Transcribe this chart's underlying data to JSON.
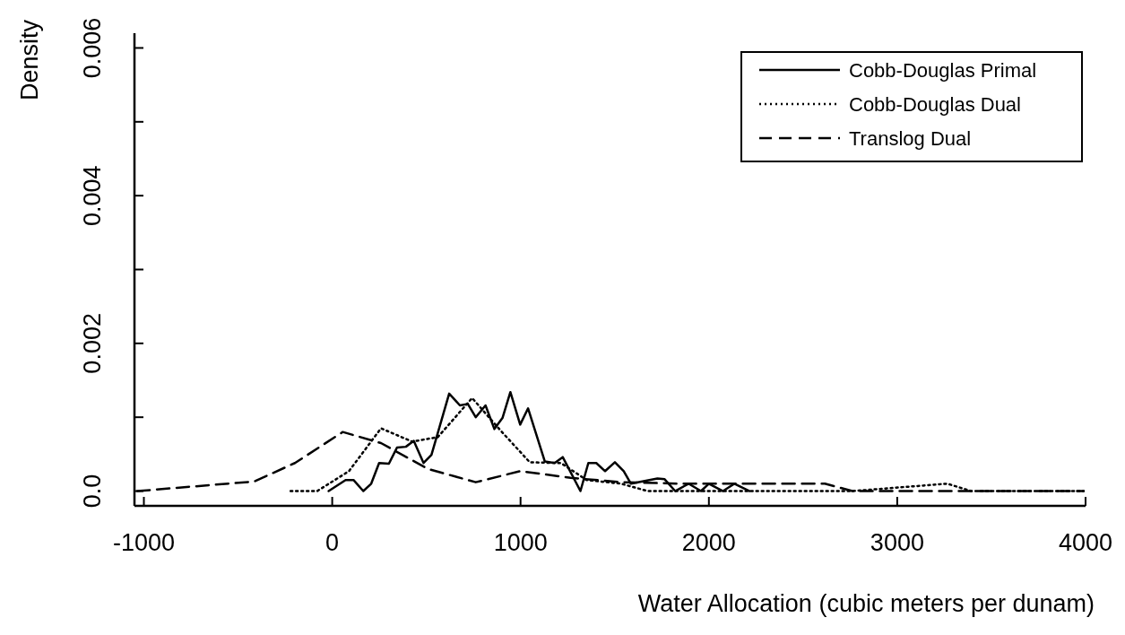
{
  "chart_data": {
    "type": "line",
    "xlabel": "Water Allocation (cubic meters per dunam)",
    "ylabel": "Density",
    "xlim": [
      -1050,
      4000
    ],
    "xticks": [
      -1000,
      0,
      1000,
      2000,
      3000,
      4000
    ],
    "ylim": [
      -0.0002,
      0.0062
    ],
    "yticks": [
      {
        "value": 0,
        "label": "0.0"
      },
      {
        "value": 0.001,
        "label": null
      },
      {
        "value": 0.002,
        "label": "0.002"
      },
      {
        "value": 0.003,
        "label": null
      },
      {
        "value": 0.004,
        "label": "0.004"
      },
      {
        "value": 0.005,
        "label": null
      },
      {
        "value": 0.006,
        "label": "0.006"
      }
    ],
    "legend": "top right",
    "series": [
      {
        "name": "Cobb-Douglas Primal",
        "color": "#000000",
        "line_style": "solid",
        "x": [
          -19,
          71,
          113,
          165,
          207,
          249,
          301,
          344,
          391,
          433,
          485,
          527,
          621,
          678,
          720,
          762,
          814,
          861,
          904,
          946,
          998,
          1040,
          1129,
          1181,
          1224,
          1318,
          1360,
          1402,
          1449,
          1501,
          1548,
          1586,
          1727,
          1765,
          1821,
          1892,
          1958,
          2000,
          2075,
          2136,
          2216
        ],
        "values": [
          0,
          0.00015,
          0.00015,
          0,
          0.0001,
          0.00038,
          0.00037,
          0.00059,
          0.0006,
          0.00068,
          0.00038,
          0.00049,
          0.00132,
          0.00116,
          0.00118,
          0.001,
          0.00116,
          0.00084,
          0.00099,
          0.00134,
          0.0009,
          0.00112,
          0.0004,
          0.00038,
          0.00046,
          0,
          0.00038,
          0.00038,
          0.00027,
          0.00039,
          0.00027,
          0.0001,
          0.00017,
          0.00016,
          0,
          0.0001,
          0,
          0.0001,
          0,
          0.0001,
          0
        ]
      },
      {
        "name": "Cobb-Douglas Dual",
        "color": "#000000",
        "line_style": "dotted",
        "x": [
          -221,
          -80,
          89,
          259,
          424,
          560,
          743,
          894,
          1049,
          1214,
          1351,
          1534,
          1675,
          2216,
          2762,
          3266,
          3393,
          3990
        ],
        "values": [
          0,
          0,
          0.00027,
          0.00085,
          0.00067,
          0.00073,
          0.00126,
          0.00082,
          0.00039,
          0.00038,
          0.00015,
          0.0001,
          0,
          0,
          0,
          0.0001,
          0,
          0
        ]
      },
      {
        "name": "Translog Dual",
        "color": "#000000",
        "line_style": "dashed",
        "x": [
          -1035,
          -414,
          -198,
          56,
          259,
          508,
          762,
          998,
          1266,
          1534,
          1854,
          2362,
          2616,
          2762,
          3125,
          3990
        ],
        "values": [
          0,
          0.00013,
          0.00038,
          0.0008,
          0.00065,
          0.0003,
          0.00012,
          0.00027,
          0.00018,
          0.00012,
          0.0001,
          0.0001,
          0.0001,
          0,
          0,
          0
        ]
      }
    ]
  }
}
